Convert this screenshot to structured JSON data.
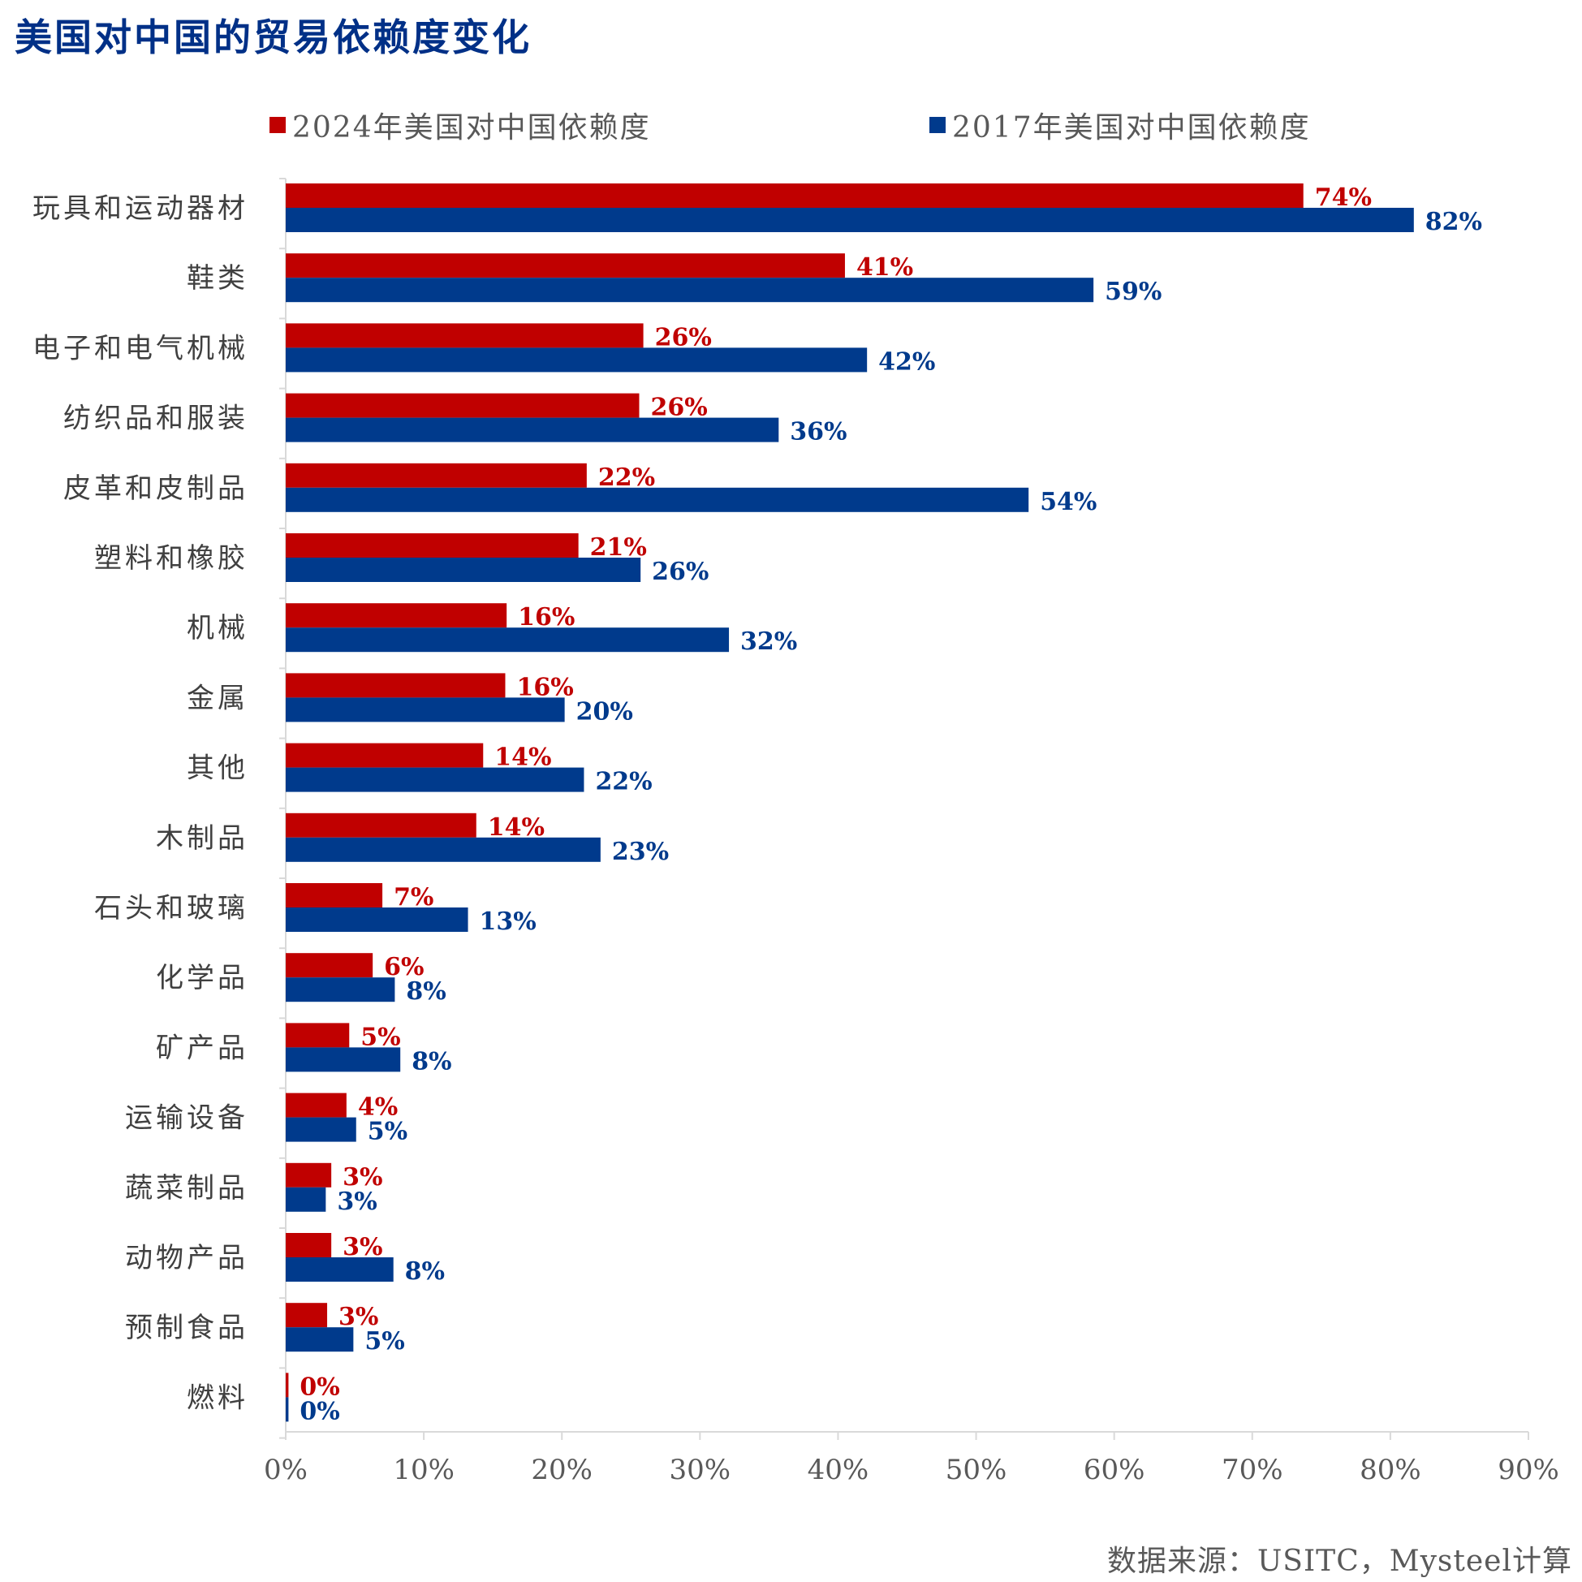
{
  "chart_data": {
    "type": "bar",
    "orientation": "horizontal",
    "title": "美国对中国的贸易依赖度变化",
    "categories": [
      "玩具和运动器材",
      "鞋类",
      "电子和电气机械",
      "纺织品和服装",
      "皮革和皮制品",
      "塑料和橡胶",
      "机械",
      "金属",
      "其他",
      "木制品",
      "石头和玻璃",
      "化学品",
      "矿产品",
      "运输设备",
      "蔬菜制品",
      "动物产品",
      "预制食品",
      "燃料"
    ],
    "series": [
      {
        "name": "2024年美国对中国依赖度",
        "color": "#C00000",
        "values": [
          74,
          41,
          26,
          26,
          22,
          21,
          16,
          16,
          14,
          14,
          7,
          6,
          5,
          4,
          3,
          3,
          3,
          0
        ],
        "value_lengths": [
          73.7,
          40.5,
          25.9,
          25.6,
          21.8,
          21.2,
          16.0,
          15.9,
          14.3,
          13.8,
          7.0,
          6.3,
          4.6,
          4.4,
          3.3,
          3.3,
          3.0,
          0.2
        ]
      },
      {
        "name": "2017年美国对中国依赖度",
        "color": "#003A8C",
        "values": [
          82,
          59,
          42,
          36,
          54,
          26,
          32,
          20,
          22,
          23,
          13,
          8,
          8,
          5,
          3,
          8,
          5,
          0
        ],
        "value_lengths": [
          81.7,
          58.5,
          42.1,
          35.7,
          53.8,
          25.7,
          32.1,
          20.2,
          21.6,
          22.8,
          13.2,
          7.9,
          8.3,
          5.1,
          2.9,
          7.8,
          4.9,
          0.2
        ]
      }
    ],
    "label_suffix": "%",
    "xlim": [
      0,
      90
    ],
    "xticks": [
      "0%",
      "10%",
      "20%",
      "30%",
      "40%",
      "50%",
      "60%",
      "70%",
      "80%",
      "90%"
    ],
    "grid": false,
    "legend_position": "top"
  },
  "source": "数据来源：USITC，Mysteel计算"
}
